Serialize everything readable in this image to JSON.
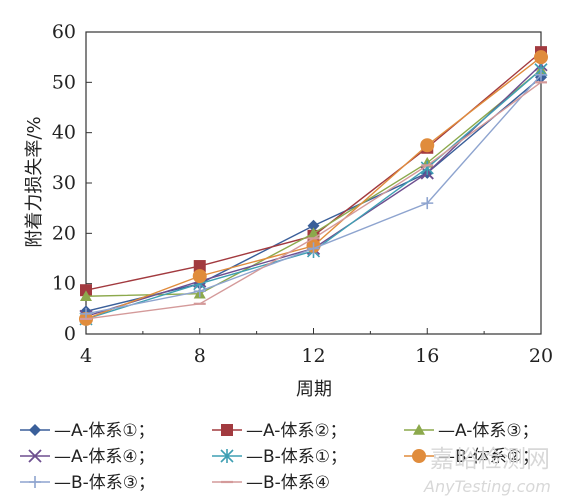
{
  "chart_data": {
    "type": "line",
    "xlabel": "周期",
    "ylabel": "附着力损失率/%",
    "x": [
      4,
      8,
      12,
      16,
      20
    ],
    "xlim": [
      4,
      20
    ],
    "ylim": [
      0,
      60
    ],
    "yticks": [
      0,
      10,
      20,
      30,
      40,
      50,
      60
    ],
    "legend_position": "bottom",
    "series": [
      {
        "name": "A-体系①",
        "label": "—A-体系①；",
        "color": "#3a5f9a",
        "marker": "diamond",
        "values": [
          4.5,
          10.0,
          21.5,
          32.0,
          51.0
        ]
      },
      {
        "name": "A-体系②",
        "label": "—A-体系②；",
        "color": "#a23a3f",
        "marker": "square",
        "values": [
          8.7,
          13.5,
          19.5,
          37.0,
          56.0
        ]
      },
      {
        "name": "A-体系③",
        "label": "—A-体系③；",
        "color": "#8ca94c",
        "marker": "triangle",
        "values": [
          7.5,
          8.0,
          20.0,
          34.0,
          52.5
        ]
      },
      {
        "name": "A-体系④",
        "label": "—A-体系④；",
        "color": "#6e4f8f",
        "marker": "x",
        "values": [
          3.5,
          10.5,
          17.0,
          32.0,
          53.5
        ]
      },
      {
        "name": "B-体系①",
        "label": "—B-体系①；",
        "color": "#3f9fb3",
        "marker": "star",
        "values": [
          3.0,
          10.0,
          16.5,
          33.0,
          52.5
        ]
      },
      {
        "name": "B-体系②",
        "label": "—B-体系②；",
        "color": "#e08c3c",
        "marker": "circle",
        "values": [
          3.0,
          11.5,
          17.5,
          37.5,
          55.0
        ]
      },
      {
        "name": "B-体系③",
        "label": "—B-体系③；",
        "color": "#8ea4cf",
        "marker": "plus",
        "values": [
          4.0,
          8.5,
          17.0,
          26.0,
          51.5
        ]
      },
      {
        "name": "B-体系④",
        "label": "—B-体系④",
        "color": "#d49a9a",
        "marker": "dash",
        "values": [
          3.0,
          6.0,
          19.0,
          33.5,
          50.0
        ]
      }
    ]
  },
  "watermark": {
    "brand": "嘉峪检测网",
    "url": "AnyTesting.com"
  }
}
